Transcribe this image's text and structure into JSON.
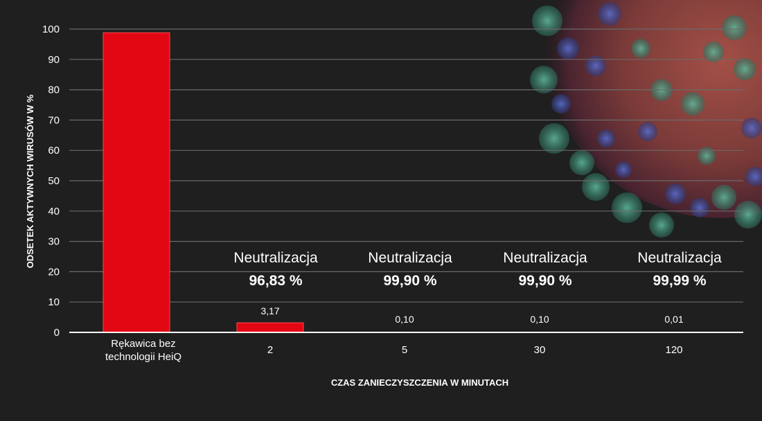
{
  "chart_data": {
    "type": "bar",
    "xlabel": "CZAS ZANIECZYSZCZENIA W MINUTACH",
    "ylabel": "ODSETEK AKTYWNYCH WIRUSÓW W %",
    "ylim": [
      0,
      100
    ],
    "yticks": [
      0,
      10,
      20,
      30,
      40,
      50,
      60,
      70,
      80,
      90,
      100
    ],
    "grid": true,
    "categories": [
      "Rękawica bez technologii HeiQ",
      "2",
      "5",
      "30",
      "120"
    ],
    "values": [
      98.8,
      3.17,
      0.1,
      0.1,
      0.01
    ],
    "value_labels": [
      "",
      "3,17",
      "0,10",
      "0,10",
      "0,01"
    ],
    "annotations": [
      {
        "category": "2",
        "label": "Neutralizacja",
        "value": "96,83 %"
      },
      {
        "category": "5",
        "label": "Neutralizacja",
        "value": "99,90 %"
      },
      {
        "category": "30",
        "label": "Neutralizacja",
        "value": "99,90 %"
      },
      {
        "category": "120",
        "label": "Neutralizacja",
        "value": "99,99 %"
      }
    ],
    "bar_color": "#e30613",
    "grid_color": "#6a6a6a",
    "text_color": "#ffffff",
    "background_color": "#1f1f1f"
  }
}
